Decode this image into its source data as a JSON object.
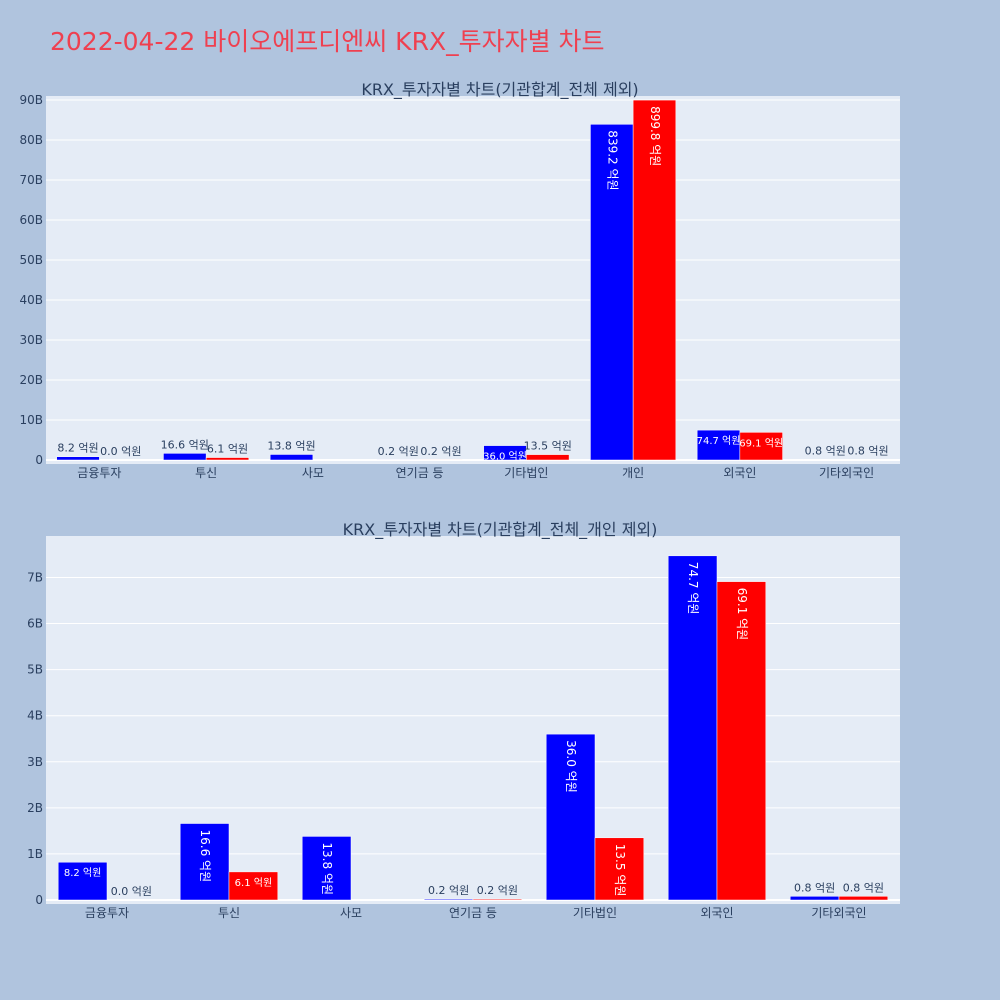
{
  "page": {
    "title": "2022-04-22 바이오에프디엔씨 KRX_투자자별 차트"
  },
  "colors": {
    "buy": "#0000ff",
    "sell": "#ff0000",
    "plot_bg": "#e5ecf6",
    "page_bg": "#b0c4de",
    "title": "#ef4050",
    "text": "#2a3f5f"
  },
  "chart_data": [
    {
      "type": "bar",
      "title": "KRX_투자자별 차트(기관합계_전체 제외)",
      "categories": [
        "금융투자",
        "투신",
        "사모",
        "연기금 등",
        "기타법인",
        "개인",
        "외국인",
        "기타외국인"
      ],
      "ylim": [
        0,
        91
      ],
      "y_unit": "B",
      "yticks": [
        0,
        10,
        20,
        30,
        40,
        50,
        60,
        70,
        80,
        90
      ],
      "ytick_labels": [
        "0",
        "10B",
        "20B",
        "30B",
        "40B",
        "50B",
        "60B",
        "70B",
        "80B",
        "90B"
      ],
      "grid": true,
      "series": [
        {
          "color": "#0000ff",
          "values": [
            0.82,
            1.66,
            1.38,
            0.02,
            3.6,
            83.92,
            7.47,
            0.08
          ],
          "labels": [
            "8.2 억원",
            "16.6 억원",
            "13.8 억원",
            "0.2 억원",
            "36.0 억원",
            "839.2 억원",
            "74.7 억원",
            "0.8 억원"
          ]
        },
        {
          "color": "#ff0000",
          "values": [
            0.0,
            0.61,
            0,
            0.02,
            1.35,
            89.98,
            6.91,
            0.08
          ],
          "labels": [
            "0.0 억원",
            "6.1 억원",
            "",
            "0.2 억원",
            "13.5 억원",
            "899.8 억원",
            "69.1 억원",
            "0.8 억원"
          ]
        }
      ]
    },
    {
      "type": "bar",
      "title": "KRX_투자자별 차트(기관합계_전체_개인 제외)",
      "categories": [
        "금융투자",
        "투신",
        "사모",
        "연기금 등",
        "기타법인",
        "외국인",
        "기타외국인"
      ],
      "ylim": [
        0,
        7.9
      ],
      "y_unit": "B",
      "yticks": [
        0,
        1,
        2,
        3,
        4,
        5,
        6,
        7
      ],
      "ytick_labels": [
        "0",
        "1B",
        "2B",
        "3B",
        "4B",
        "5B",
        "6B",
        "7B"
      ],
      "grid": true,
      "series": [
        {
          "color": "#0000ff",
          "values": [
            0.82,
            1.66,
            1.38,
            0.02,
            3.6,
            7.47,
            0.08
          ],
          "labels": [
            "8.2 억원",
            "16.6 억원",
            "13.8 억원",
            "0.2 억원",
            "36.0 억원",
            "74.7 억원",
            "0.8 억원"
          ]
        },
        {
          "color": "#ff0000",
          "values": [
            0.0,
            0.61,
            0,
            0.02,
            1.35,
            6.91,
            0.08
          ],
          "labels": [
            "0.0 억원",
            "6.1 억원",
            "",
            "0.2 억원",
            "13.5 억원",
            "69.1 억원",
            "0.8 억원"
          ]
        }
      ]
    }
  ]
}
